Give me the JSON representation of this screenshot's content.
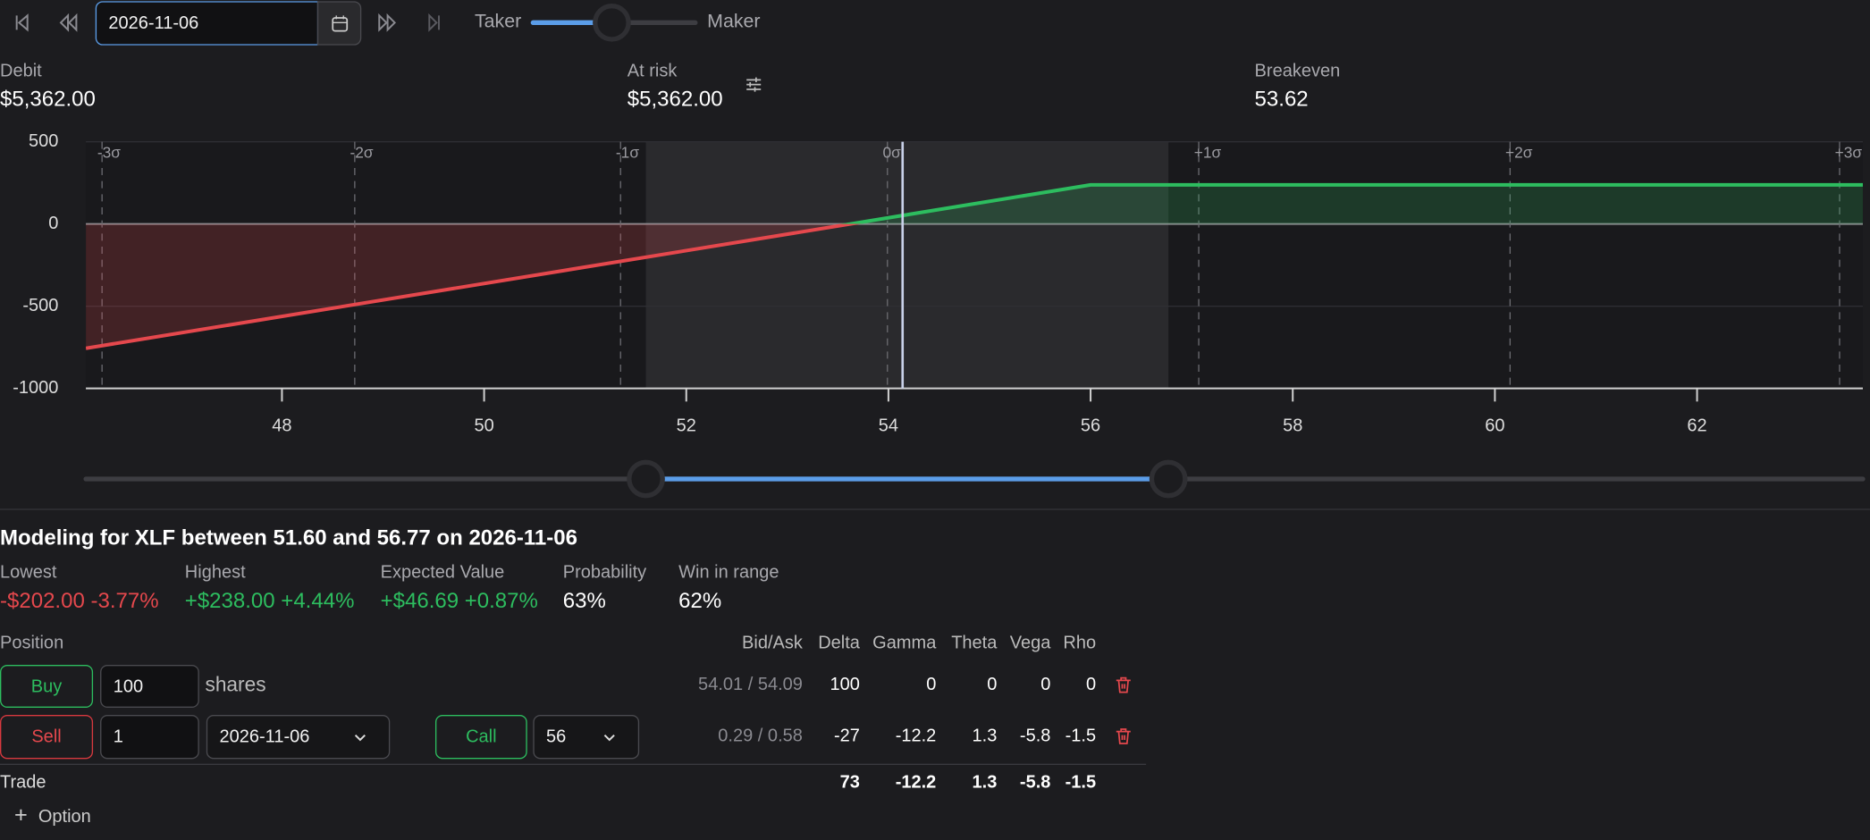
{
  "toolbar": {
    "date": "2026-11-06",
    "taker": "Taker",
    "maker": "Maker"
  },
  "summary": {
    "debit": {
      "label": "Debit",
      "value": "$5,362.00"
    },
    "at_risk": {
      "label": "At risk",
      "value": "$5,362.00"
    },
    "breakeven": {
      "label": "Breakeven",
      "value": "53.62"
    }
  },
  "chart_data": {
    "type": "line",
    "x": [
      46.06,
      53.62,
      56,
      63.64
    ],
    "series": [
      {
        "color": "#2dbd5f",
        "negative_color": "#e5484d",
        "values": [
          -756,
          0,
          238,
          238
        ]
      }
    ],
    "xlim": [
      46.06,
      63.64
    ],
    "ylim": [
      -1000,
      500
    ],
    "xticks": [
      48,
      50,
      52,
      54,
      56,
      58,
      60,
      62
    ],
    "yticks": [
      500,
      0,
      -500,
      -1000
    ],
    "grid": true,
    "range": [
      51.6,
      56.77
    ],
    "current_price": 54.14,
    "sigma_lines": [
      {
        "value": 46.22,
        "label": "-3σ"
      },
      {
        "value": 48.72,
        "label": "-2σ"
      },
      {
        "value": 51.35,
        "label": "-1σ"
      },
      {
        "value": 53.99,
        "label": "0σ"
      },
      {
        "value": 57.07,
        "label": "+1σ"
      },
      {
        "value": 60.15,
        "label": "+2σ"
      },
      {
        "value": 63.41,
        "label": "+3σ"
      }
    ]
  },
  "modeling": {
    "title": "Modeling for XLF between 51.60 and 56.77 on 2026-11-06",
    "stats": [
      {
        "label": "Lowest",
        "value": "-$202.00 -3.77%",
        "tone": "negative"
      },
      {
        "label": "Highest",
        "value": "+$238.00 +4.44%",
        "tone": "positive"
      },
      {
        "label": "Expected Value",
        "value": "+$46.69 +0.87%",
        "tone": "positive"
      },
      {
        "label": "Probability",
        "value": "63%",
        "tone": "neutral"
      },
      {
        "label": "Win in range",
        "value": "62%",
        "tone": "neutral"
      }
    ]
  },
  "positions": {
    "heading": "Position",
    "columns": [
      "Bid/Ask",
      "Delta",
      "Gamma",
      "Theta",
      "Vega",
      "Rho"
    ],
    "rows": [
      {
        "side": "Buy",
        "quantity": "100",
        "unit": "shares",
        "bid_ask": "54.01 / 54.09",
        "greeks": [
          100,
          0,
          0,
          0,
          0
        ]
      },
      {
        "side": "Sell",
        "quantity": "1",
        "expiry": "2026-11-06",
        "kind": "Call",
        "strike": "56",
        "bid_ask": "0.29 / 0.58",
        "greeks": [
          -27,
          -12.2,
          1.3,
          -5.8,
          -1.5
        ]
      }
    ],
    "total": {
      "label": "Trade",
      "greeks": [
        73,
        -12.2,
        1.3,
        -5.8,
        -1.5
      ]
    },
    "add": "Option"
  }
}
